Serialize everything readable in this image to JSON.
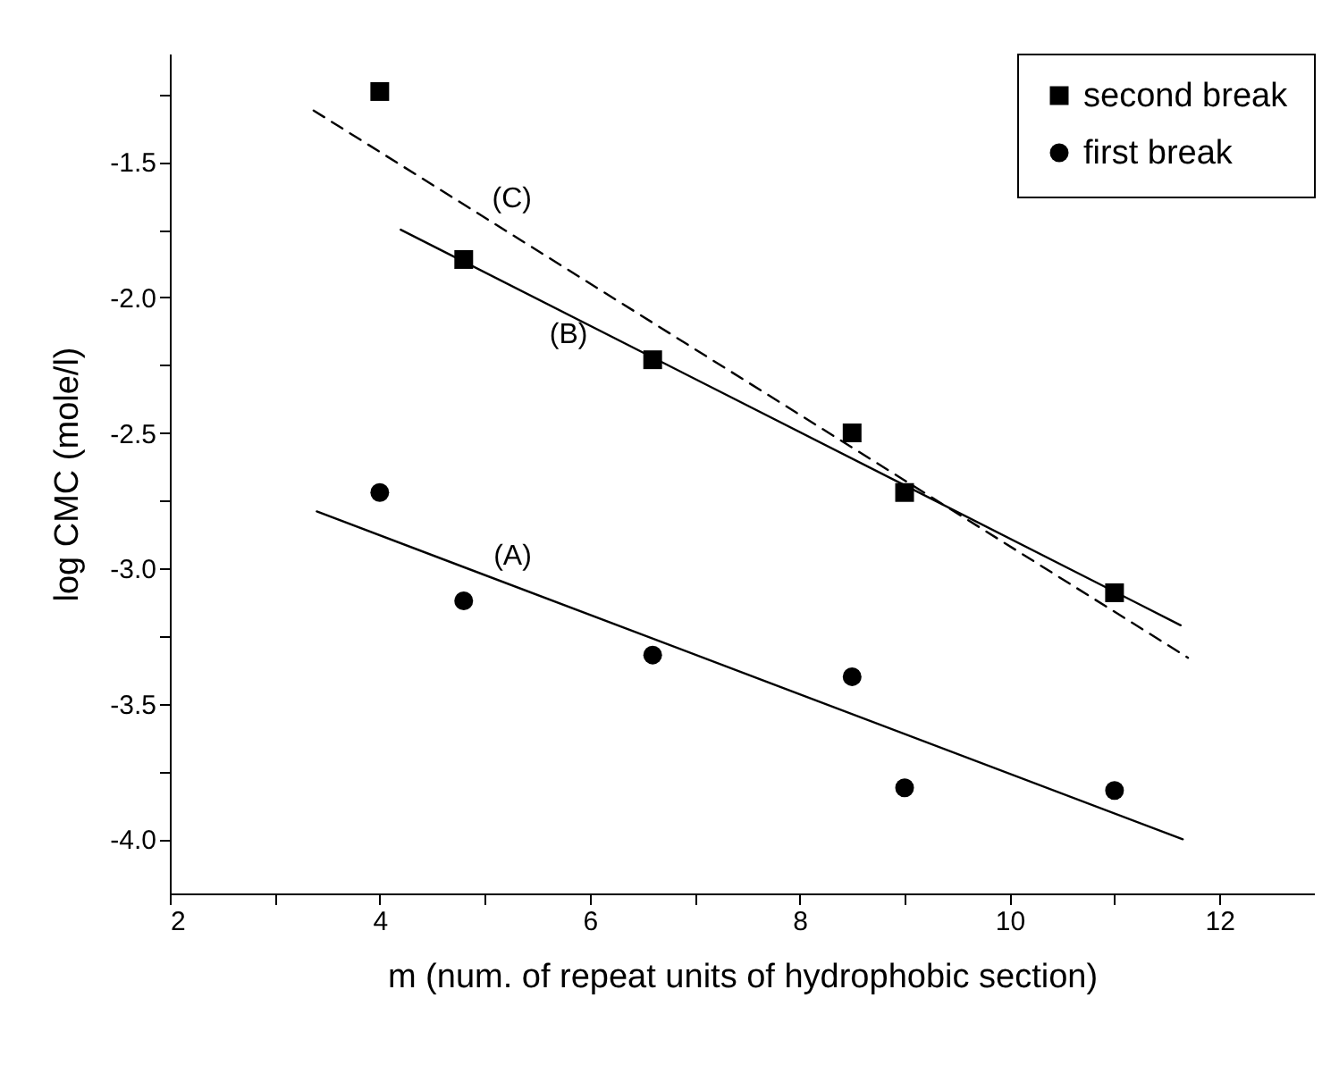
{
  "chart_data": {
    "type": "scatter",
    "xlabel": "m (num. of repeat units of hydrophobic section)",
    "ylabel": "log CMC (mole/l)",
    "xlim": [
      2,
      12.9
    ],
    "ylim": [
      -4.2,
      -1.1
    ],
    "xticks": [
      2,
      {
        "value": 3,
        "label": null
      },
      4,
      {
        "value": 5,
        "label": null
      },
      6,
      {
        "value": 7,
        "label": null
      },
      8,
      {
        "value": 9,
        "label": null
      },
      10,
      {
        "value": 11,
        "label": null
      },
      12
    ],
    "yticks": [
      {
        "value": -4.0,
        "label": "-4.0"
      },
      {
        "value": -3.75,
        "label": null
      },
      -3.5,
      {
        "value": -3.25,
        "label": null
      },
      {
        "value": -3.0,
        "label": "-3.0"
      },
      {
        "value": -2.75,
        "label": null
      },
      -2.5,
      {
        "value": -2.25,
        "label": null
      },
      {
        "value": -2.0,
        "label": "-2.0"
      },
      {
        "value": -1.75,
        "label": null
      },
      -1.5,
      {
        "value": -1.25,
        "label": null
      }
    ],
    "legend": "top right",
    "grid": false,
    "series": [
      {
        "name": "second break",
        "marker": "square",
        "color": "#000000",
        "x": [
          4.0,
          4.8,
          6.6,
          8.5,
          9.0,
          11.0
        ],
        "values": [
          -1.24,
          -1.86,
          -2.23,
          -2.5,
          -2.72,
          -3.09
        ]
      },
      {
        "name": "first break",
        "marker": "circle",
        "color": "#000000",
        "x": [
          4.0,
          4.8,
          6.6,
          8.5,
          9.0,
          11.0
        ],
        "values": [
          -2.72,
          -3.12,
          -3.32,
          -3.4,
          -3.81,
          -3.82
        ]
      },
      {
        "name": "(A)",
        "type": "line",
        "line_style": "solid",
        "color": "#000000",
        "x": [
          3.4,
          11.65
        ],
        "values": [
          -2.79,
          -4.0
        ]
      },
      {
        "name": "(B)",
        "type": "line",
        "line_style": "solid",
        "color": "#000000",
        "x": [
          4.2,
          11.63
        ],
        "values": [
          -1.75,
          -3.21
        ]
      },
      {
        "name": "(C)",
        "type": "line",
        "line_style": "dashed",
        "color": "#000000",
        "x": [
          3.37,
          11.7
        ],
        "values": [
          -1.31,
          -3.33
        ]
      }
    ]
  }
}
